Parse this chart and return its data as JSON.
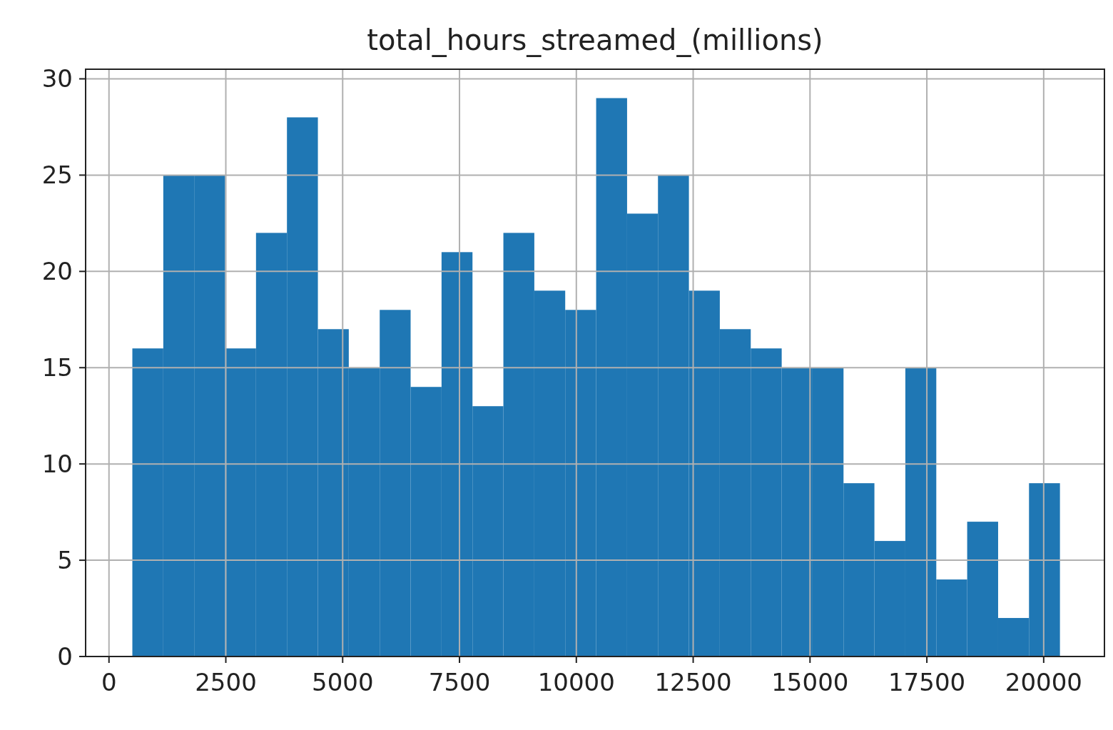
{
  "chart_data": {
    "type": "histogram",
    "title": "total_hours_streamed_(millions)",
    "bins": [
      500,
      1162,
      1823,
      2485,
      3146,
      3808,
      4470,
      5131,
      5793,
      6454,
      7116,
      7778,
      8439,
      9101,
      9762,
      10424,
      11086,
      11747,
      12409,
      13070,
      13732,
      14394,
      15055,
      15717,
      16378,
      17040,
      17702,
      18363,
      19025,
      19686,
      20348
    ],
    "values": [
      16,
      25,
      25,
      16,
      22,
      28,
      17,
      15,
      18,
      14,
      21,
      13,
      22,
      19,
      18,
      29,
      23,
      25,
      19,
      17,
      16,
      15,
      15,
      9,
      6,
      15,
      4,
      7,
      2,
      9
    ],
    "color": "#1f77b4",
    "xlim": [
      -500,
      21300
    ],
    "xticks": [
      0,
      2500,
      5000,
      7500,
      10000,
      12500,
      15000,
      17500,
      20000
    ],
    "ylim": [
      0,
      30.5
    ],
    "yticks": [
      0,
      5,
      10,
      15,
      20,
      25,
      30
    ],
    "grid": true
  }
}
